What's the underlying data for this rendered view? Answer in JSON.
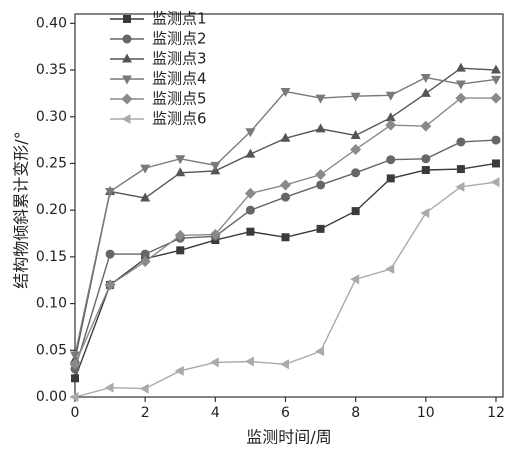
{
  "chart_data": {
    "type": "line",
    "x_label": "监测时间/周",
    "y_label": "结构物倾斜累计变形/°",
    "x": [
      0,
      1,
      2,
      3,
      4,
      5,
      6,
      7,
      8,
      9,
      10,
      11,
      12
    ],
    "series": [
      {
        "name": "监测点1",
        "color": "#3a3a3a",
        "marker": "square",
        "values": [
          0.02,
          0.12,
          0.148,
          0.157,
          0.168,
          0.177,
          0.171,
          0.18,
          0.199,
          0.234,
          0.243,
          0.244,
          0.25
        ]
      },
      {
        "name": "监测点2",
        "color": "#666666",
        "marker": "circle",
        "values": [
          0.03,
          0.153,
          0.153,
          0.17,
          0.172,
          0.2,
          0.214,
          0.227,
          0.24,
          0.254,
          0.255,
          0.273,
          0.275
        ]
      },
      {
        "name": "监测点3",
        "color": "#555555",
        "marker": "triangle-up",
        "values": [
          0.04,
          0.22,
          0.213,
          0.24,
          0.242,
          0.26,
          0.277,
          0.287,
          0.28,
          0.299,
          0.325,
          0.352,
          0.35
        ]
      },
      {
        "name": "监测点4",
        "color": "#7a7a7a",
        "marker": "triangle-down",
        "values": [
          0.045,
          0.22,
          0.245,
          0.255,
          0.248,
          0.284,
          0.327,
          0.32,
          0.322,
          0.323,
          0.342,
          0.335,
          0.34
        ]
      },
      {
        "name": "监测点5",
        "color": "#8a8a8a",
        "marker": "diamond",
        "values": [
          0.035,
          0.12,
          0.145,
          0.173,
          0.174,
          0.218,
          0.227,
          0.238,
          0.265,
          0.291,
          0.29,
          0.32,
          0.32
        ]
      },
      {
        "name": "监测点6",
        "color": "#aaaaaa",
        "marker": "triangle-left",
        "values": [
          0.0,
          0.01,
          0.009,
          0.028,
          0.037,
          0.038,
          0.035,
          0.049,
          0.126,
          0.137,
          0.197,
          0.225,
          0.23
        ]
      }
    ],
    "xlim": [
      0,
      12.2
    ],
    "xticks": [
      0,
      2,
      4,
      6,
      8,
      10,
      12
    ],
    "ylim": [
      0,
      0.41
    ],
    "yticks": [
      {
        "value": 0,
        "label": "0.00"
      },
      {
        "value": 0.05,
        "label": "0.05"
      },
      {
        "value": 0.1,
        "label": "0.10"
      },
      {
        "value": 0.15,
        "label": "0.15"
      },
      {
        "value": 0.2,
        "label": "0.20"
      },
      {
        "value": 0.25,
        "label": "0.25"
      },
      {
        "value": 0.3,
        "label": "0.30"
      },
      {
        "value": 0.35,
        "label": "0.35"
      },
      {
        "value": 0.4,
        "label": "0.40"
      }
    ],
    "grid": false,
    "legend": "upper-left"
  }
}
